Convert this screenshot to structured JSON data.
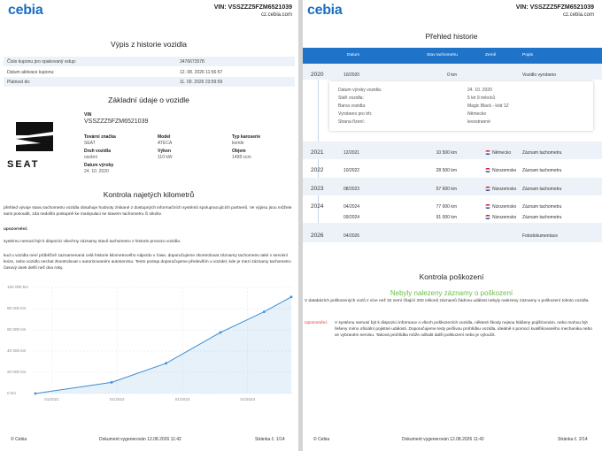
{
  "left": {
    "logo": "cebia",
    "vin": "VIN: VSSZZZ5FZM6521039",
    "site": "cz.cebia.com",
    "title": "Výpis z historie vozidla",
    "coupon_rows": [
      [
        "Číslo kuponu pro opakovaný vstup:",
        "3476673578"
      ],
      [
        "Datum aktivace kuponu:",
        "12. 08. 2026 11:56:57"
      ],
      [
        "Platnost do:",
        "11. 09. 2026 23:59:59"
      ]
    ],
    "basic_title": "Základní údaje o vozidle",
    "brand_logo": "SEAT",
    "vin_label": "VIN",
    "vin_value": "VSSZZZ5FZM6521039",
    "fields": [
      [
        "Tovární značka",
        "SEAT"
      ],
      [
        "Model",
        "ATECA"
      ],
      [
        "Typ karoserie",
        "kombi"
      ],
      [
        "Druh vozidla",
        "osobní"
      ],
      [
        "Výkon",
        "110 kW"
      ],
      [
        "Objem",
        "1498 ccm"
      ],
      [
        "Datum výroby",
        "24. 10. 2020"
      ]
    ],
    "km_title": "Kontrola najetých kilometrů",
    "paragraphs": [
      "přehled vývoje stavu tachometru vozidla obsahuje hodnoty získané z dostupných informačních systémů spolupracujících partnerů. Ve výpisu jsou můžete sami posoudit, zda nedošlo postupně ke manipulaci se stavem tachometru či nikoliv.",
      "upozornění:",
      "systému nemusí být k dispozici všechny záznamy stavů tachometru z historie provozu vozidla.",
      "kud u vozidla není průběžně zaznamenaná celá historie kilometrového nájezdu v čase, doporučujeme zkontrolovat záznamy tachometru také v servisní knize, nebo vozidlo nechat zkontrolovat v autorizovaném autoservisu. Tento postup doporučujeme především u vozidel, kde je mezi záznamy tachometru časový úsek delší než dva roky."
    ],
    "footer": [
      "© Cebia",
      "Dokument vygenerován 12.08.2026 11:42",
      "Stránka č. 1/14"
    ]
  },
  "chart": {
    "type": "line",
    "x": [
      "2020-10",
      "2021-12",
      "2022-10",
      "2023-08",
      "2024-04",
      "2024-09"
    ],
    "values": [
      0,
      10500,
      28500,
      57600,
      77000,
      91000
    ],
    "color": "#3a8fd8",
    "xlim": [
      "2020-10",
      "2024-09"
    ],
    "xticks": [
      {
        "value": "2021-01",
        "label": "01/2021"
      },
      {
        "value": "2022-01",
        "label": "01/2022"
      },
      {
        "value": "2023-01",
        "label": "01/2023"
      },
      {
        "value": "2024-01",
        "label": "01/2024"
      }
    ],
    "ylim": [
      0,
      100000
    ],
    "yticks": [
      {
        "value": 0,
        "label": "0 km"
      },
      {
        "value": 20000,
        "label": "20 000 km"
      },
      {
        "value": 40000,
        "label": "40 000 km"
      },
      {
        "value": 60000,
        "label": "60 000 km"
      },
      {
        "value": 80000,
        "label": "80 000 km"
      },
      {
        "value": 100000,
        "label": "100 000 km"
      }
    ],
    "grid": true
  },
  "right": {
    "logo": "cebia",
    "vin": "VIN: VSSZZZ5FZM6521039",
    "site": "cz.cebia.com",
    "title": "Přehled historie",
    "header": [
      "Datum",
      "Stav tachometru",
      "Země",
      "Popis"
    ],
    "history": [
      {
        "year": "2020",
        "date": "10/2020",
        "km": "0 km",
        "desc": "Vozidlo vyrobeno"
      },
      {
        "year": "2021",
        "date": "12/2021",
        "km": "10 500 km",
        "country": "Německo",
        "desc": "Záznam tachometru"
      },
      {
        "year": "2022",
        "date": "10/2022",
        "km": "28 500 km",
        "country": "Nizozemsko",
        "desc": "Záznam tachometru"
      },
      {
        "year": "2023",
        "date": "08/2023",
        "km": "57 600 km",
        "country": "Nizozemsko",
        "desc": "Záznam tachometru"
      },
      {
        "year": "2024",
        "date": "04/2024",
        "km": "77 000 km",
        "country": "Nizozemsko",
        "desc": "Záznam tachometru"
      },
      {
        "date": "09/2024",
        "km": "91 000 km",
        "country": "Nizozemsko",
        "desc": "Záznam tachometru"
      },
      {
        "year": "2026",
        "date": "04/2026",
        "desc": "Fotodokumentace"
      }
    ],
    "details": [
      [
        "Datum výroby vozidla:",
        "24. 10. 2020"
      ],
      [
        "Stáří vozidla:",
        "5 let 9 měsíců"
      ],
      [
        "Barva vozidla:",
        "Magic Black - kód 1Z"
      ],
      [
        "Vyrobeno pro trh:",
        "Německo"
      ],
      [
        "Strana řízení:",
        "levostranné"
      ]
    ],
    "damage_title": "Kontrola poškození",
    "damage_result": "Nebyly nalezeny záznamy o poškození",
    "damage_text": "V databázích poškozených vozů z více než 32 zemí čítající 200 milionů záznamů žádnou událost nebyly nalezeny záznamy o poškození tohoto vozidla.",
    "warning_label": "Upozornění:",
    "warning_text": "V systému nemusí být k dispozici informace o všech poškozeních vozidla, některé škody nejsou hlášeny pojišťovnám, nebo mohou být řešeny mimo oficiální pojistné události. Doporučujeme tedy pečlivou prohlídku vozidla, ideálně s pomocí kvalifikovaného mechanika nebo ve vybraném servisu. Taková prohlídka může odhalit další poškození nebo je vyloučit.",
    "footer": [
      "© Cebia",
      "Dokument vygenerován 12.08.2026 11:42",
      "Stránka č. 2/14"
    ]
  }
}
